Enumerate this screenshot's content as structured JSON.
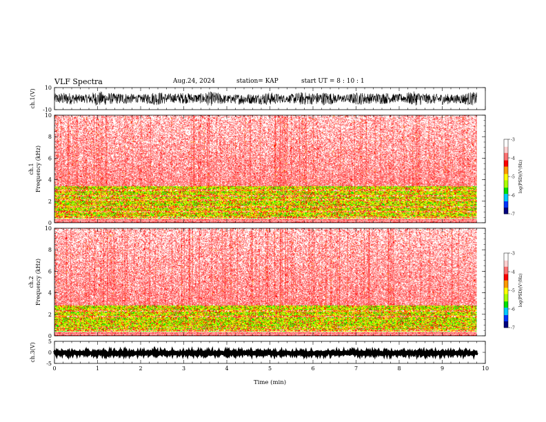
{
  "header": {
    "title": "VLF Spectra",
    "date": "Aug.24, 2024",
    "station": "station= KAP",
    "start": "start UT =  8 : 10 : 1"
  },
  "colors": {
    "background": "#ffffff",
    "axis": "#000000",
    "colormap": [
      "#000080",
      "#0033ff",
      "#00c8ff",
      "#00e000",
      "#aaff00",
      "#ffff00",
      "#ff9900",
      "#ff0000",
      "#ff7070",
      "#ffd0d0",
      "#ffffff"
    ]
  },
  "chart_data": [
    {
      "type": "line",
      "panel": "ch1-waveform",
      "ylabel": "ch.1(V)",
      "ylim": [
        -10,
        10
      ],
      "y_ticks": [
        "10",
        "-10"
      ],
      "x": [
        0,
        1,
        2,
        3,
        4,
        5,
        6,
        7,
        8,
        9,
        9.8
      ],
      "y_envelope_min": [
        -6,
        -7,
        -6,
        -6,
        -7,
        -6,
        -7,
        -6,
        -6,
        -7,
        -6
      ],
      "y_envelope_max": [
        6,
        7,
        6,
        7,
        6,
        6,
        7,
        6,
        7,
        6,
        6
      ]
    },
    {
      "type": "heatmap",
      "panel": "ch1-spectrogram",
      "ylabel_line1": "ch.1",
      "ylabel_line2": "Frequency (kHz)",
      "ylim": [
        0,
        10
      ],
      "y_ticks": [
        "0",
        "2",
        "4",
        "6",
        "8",
        "10"
      ],
      "data_xlim": [
        0,
        9.8
      ],
      "colorbar_label": "log(PSD)(V²/Hz)",
      "colorbar_ticks": [
        "-3",
        "-4",
        "-5",
        "-6",
        "-7"
      ],
      "colorbar_range": [
        -7,
        -3
      ],
      "strong_bands_khz": [
        [
          0.4,
          3.4
        ]
      ],
      "hot_lines_khz": [
        0.5,
        1.0,
        1.5,
        2.1,
        2.5,
        3.0
      ]
    },
    {
      "type": "heatmap",
      "panel": "ch2-spectrogram",
      "ylabel_line1": "ch.2",
      "ylabel_line2": "Frequency (kHz)",
      "ylim": [
        0,
        10
      ],
      "y_ticks": [
        "0",
        "2",
        "4",
        "6",
        "8",
        "10"
      ],
      "data_xlim": [
        0,
        9.8
      ],
      "colorbar_label": "log(PSD)(V²/Hz)",
      "colorbar_ticks": [
        "-3",
        "-4",
        "-5",
        "-6",
        "-7"
      ],
      "colorbar_range": [
        -7,
        -3
      ],
      "strong_bands_khz": [
        [
          0.4,
          2.8
        ]
      ],
      "hot_lines_khz": [
        0.5,
        0.8,
        1.8,
        2.3
      ]
    },
    {
      "type": "line",
      "panel": "ch3-waveform",
      "ylabel": "ch.3(V)",
      "ylim": [
        -5,
        5
      ],
      "y_ticks": [
        "5",
        "0",
        "-5"
      ],
      "x": [
        0,
        9.8
      ],
      "y_envelope_min": [
        -0.8,
        -0.8
      ],
      "y_envelope_max": [
        0.2,
        0.2
      ]
    }
  ],
  "x_axis": {
    "label": "Time (min)",
    "xlim": [
      0,
      10
    ],
    "ticks": [
      "0",
      "1",
      "2",
      "3",
      "4",
      "5",
      "6",
      "7",
      "8",
      "9",
      "10"
    ]
  }
}
